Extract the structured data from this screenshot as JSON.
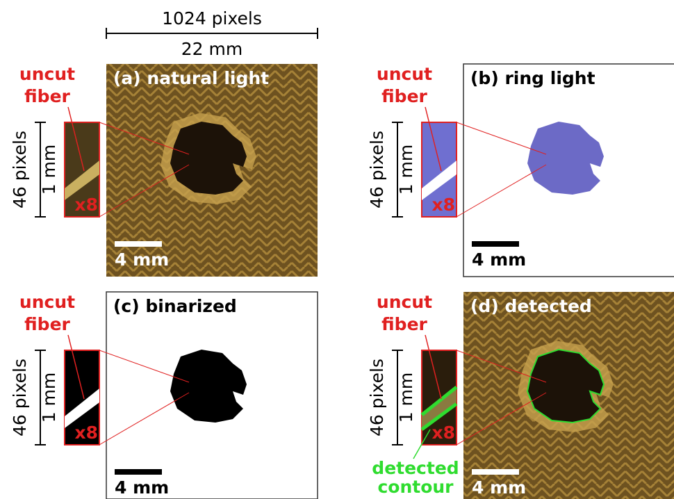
{
  "header": {
    "pixels": "1024 pixels",
    "mm": "22 mm"
  },
  "panels": [
    {
      "title": "(a) natural light",
      "annotation": [
        "uncut",
        "fiber"
      ],
      "inset_pixels": "46 pixels",
      "inset_mm": "1 mm",
      "zoom": "x8",
      "scale_bar": "4 mm"
    },
    {
      "title": "(b) ring light",
      "annotation": [
        "uncut",
        "fiber"
      ],
      "inset_pixels": "46 pixels",
      "inset_mm": "1 mm",
      "zoom": "x8",
      "scale_bar": "4 mm"
    },
    {
      "title": "(c) binarized",
      "annotation": [
        "uncut",
        "fiber"
      ],
      "inset_pixels": "46 pixels",
      "inset_mm": "1 mm",
      "zoom": "x8",
      "scale_bar": "4 mm"
    },
    {
      "title": "(d) detected",
      "annotation": [
        "uncut",
        "fiber"
      ],
      "inset_pixels": "46 pixels",
      "inset_mm": "1 mm",
      "zoom": "x8",
      "scale_bar": "4 mm",
      "contour_label": [
        "detected",
        "contour"
      ]
    }
  ]
}
